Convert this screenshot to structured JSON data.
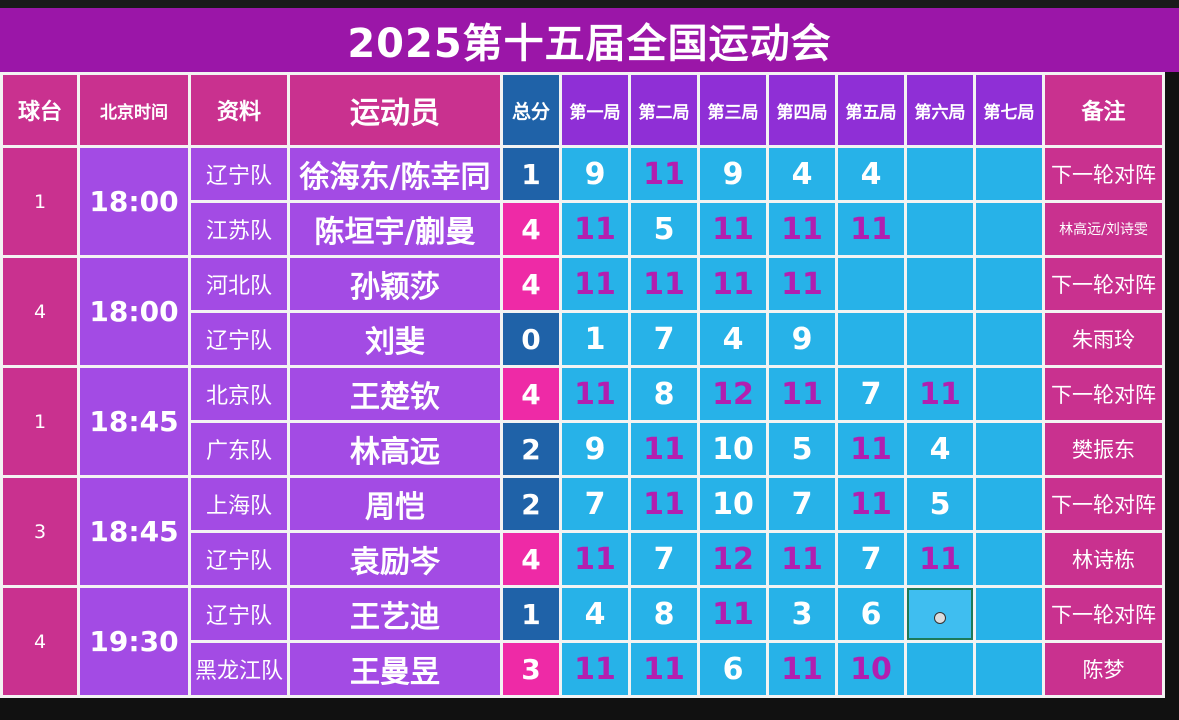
{
  "title": "2025第十五届全国运动会",
  "headers": {
    "table_no": "球台",
    "time": "北京时间",
    "info": "资料",
    "player": "运动员",
    "total": "总分",
    "games": [
      "第一局",
      "第二局",
      "第三局",
      "第四局",
      "第五局",
      "第六局",
      "第七局"
    ],
    "notes": "备注"
  },
  "matches": [
    {
      "table_no": "1",
      "time": "18:00",
      "rows": [
        {
          "team": "辽宁队",
          "player": "徐海东/陈幸同",
          "total": "1",
          "scores": [
            "9",
            "11",
            "9",
            "4",
            "4",
            "",
            ""
          ],
          "note": "下一轮对阵"
        },
        {
          "team": "江苏队",
          "player": "陈垣宇/蒯曼",
          "total": "4",
          "scores": [
            "11",
            "5",
            "11",
            "11",
            "11",
            "",
            ""
          ],
          "note": "林高远/刘诗雯"
        }
      ]
    },
    {
      "table_no": "4",
      "time": "18:00",
      "rows": [
        {
          "team": "河北队",
          "player": "孙颖莎",
          "total": "4",
          "scores": [
            "11",
            "11",
            "11",
            "11",
            "",
            "",
            ""
          ],
          "note": "下一轮对阵"
        },
        {
          "team": "辽宁队",
          "player": "刘斐",
          "total": "0",
          "scores": [
            "1",
            "7",
            "4",
            "9",
            "",
            "",
            ""
          ],
          "note": "朱雨玲"
        }
      ]
    },
    {
      "table_no": "1",
      "time": "18:45",
      "rows": [
        {
          "team": "北京队",
          "player": "王楚钦",
          "total": "4",
          "scores": [
            "11",
            "8",
            "12",
            "11",
            "7",
            "11",
            ""
          ],
          "note": "下一轮对阵"
        },
        {
          "team": "广东队",
          "player": "林高远",
          "total": "2",
          "scores": [
            "9",
            "11",
            "10",
            "5",
            "11",
            "4",
            ""
          ],
          "note": "樊振东"
        }
      ]
    },
    {
      "table_no": "3",
      "time": "18:45",
      "rows": [
        {
          "team": "上海队",
          "player": "周恺",
          "total": "2",
          "scores": [
            "7",
            "11",
            "10",
            "7",
            "11",
            "5",
            ""
          ],
          "note": "下一轮对阵"
        },
        {
          "team": "辽宁队",
          "player": "袁励岑",
          "total": "4",
          "scores": [
            "11",
            "7",
            "12",
            "11",
            "7",
            "11",
            ""
          ],
          "note": "林诗栋"
        }
      ]
    },
    {
      "table_no": "4",
      "time": "19:30",
      "rows": [
        {
          "team": "辽宁队",
          "player": "王艺迪",
          "total": "1",
          "scores": [
            "4",
            "8",
            "11",
            "3",
            "6",
            "",
            ""
          ],
          "note": "下一轮对阵"
        },
        {
          "team": "黑龙江队",
          "player": "王曼昱",
          "total": "3",
          "scores": [
            "11",
            "11",
            "6",
            "11",
            "10",
            "",
            ""
          ],
          "note": "陈梦"
        }
      ]
    }
  ],
  "colors": {
    "title_bg": "#9b16a8",
    "header_bg": "#c9318f",
    "purple_cell": "#a34be4",
    "score_bg": "#27b2e8",
    "winning_score_text": "#b21fb0",
    "total_win_bg": "#ee2aa6",
    "total_lose_bg": "#1f62a8"
  }
}
